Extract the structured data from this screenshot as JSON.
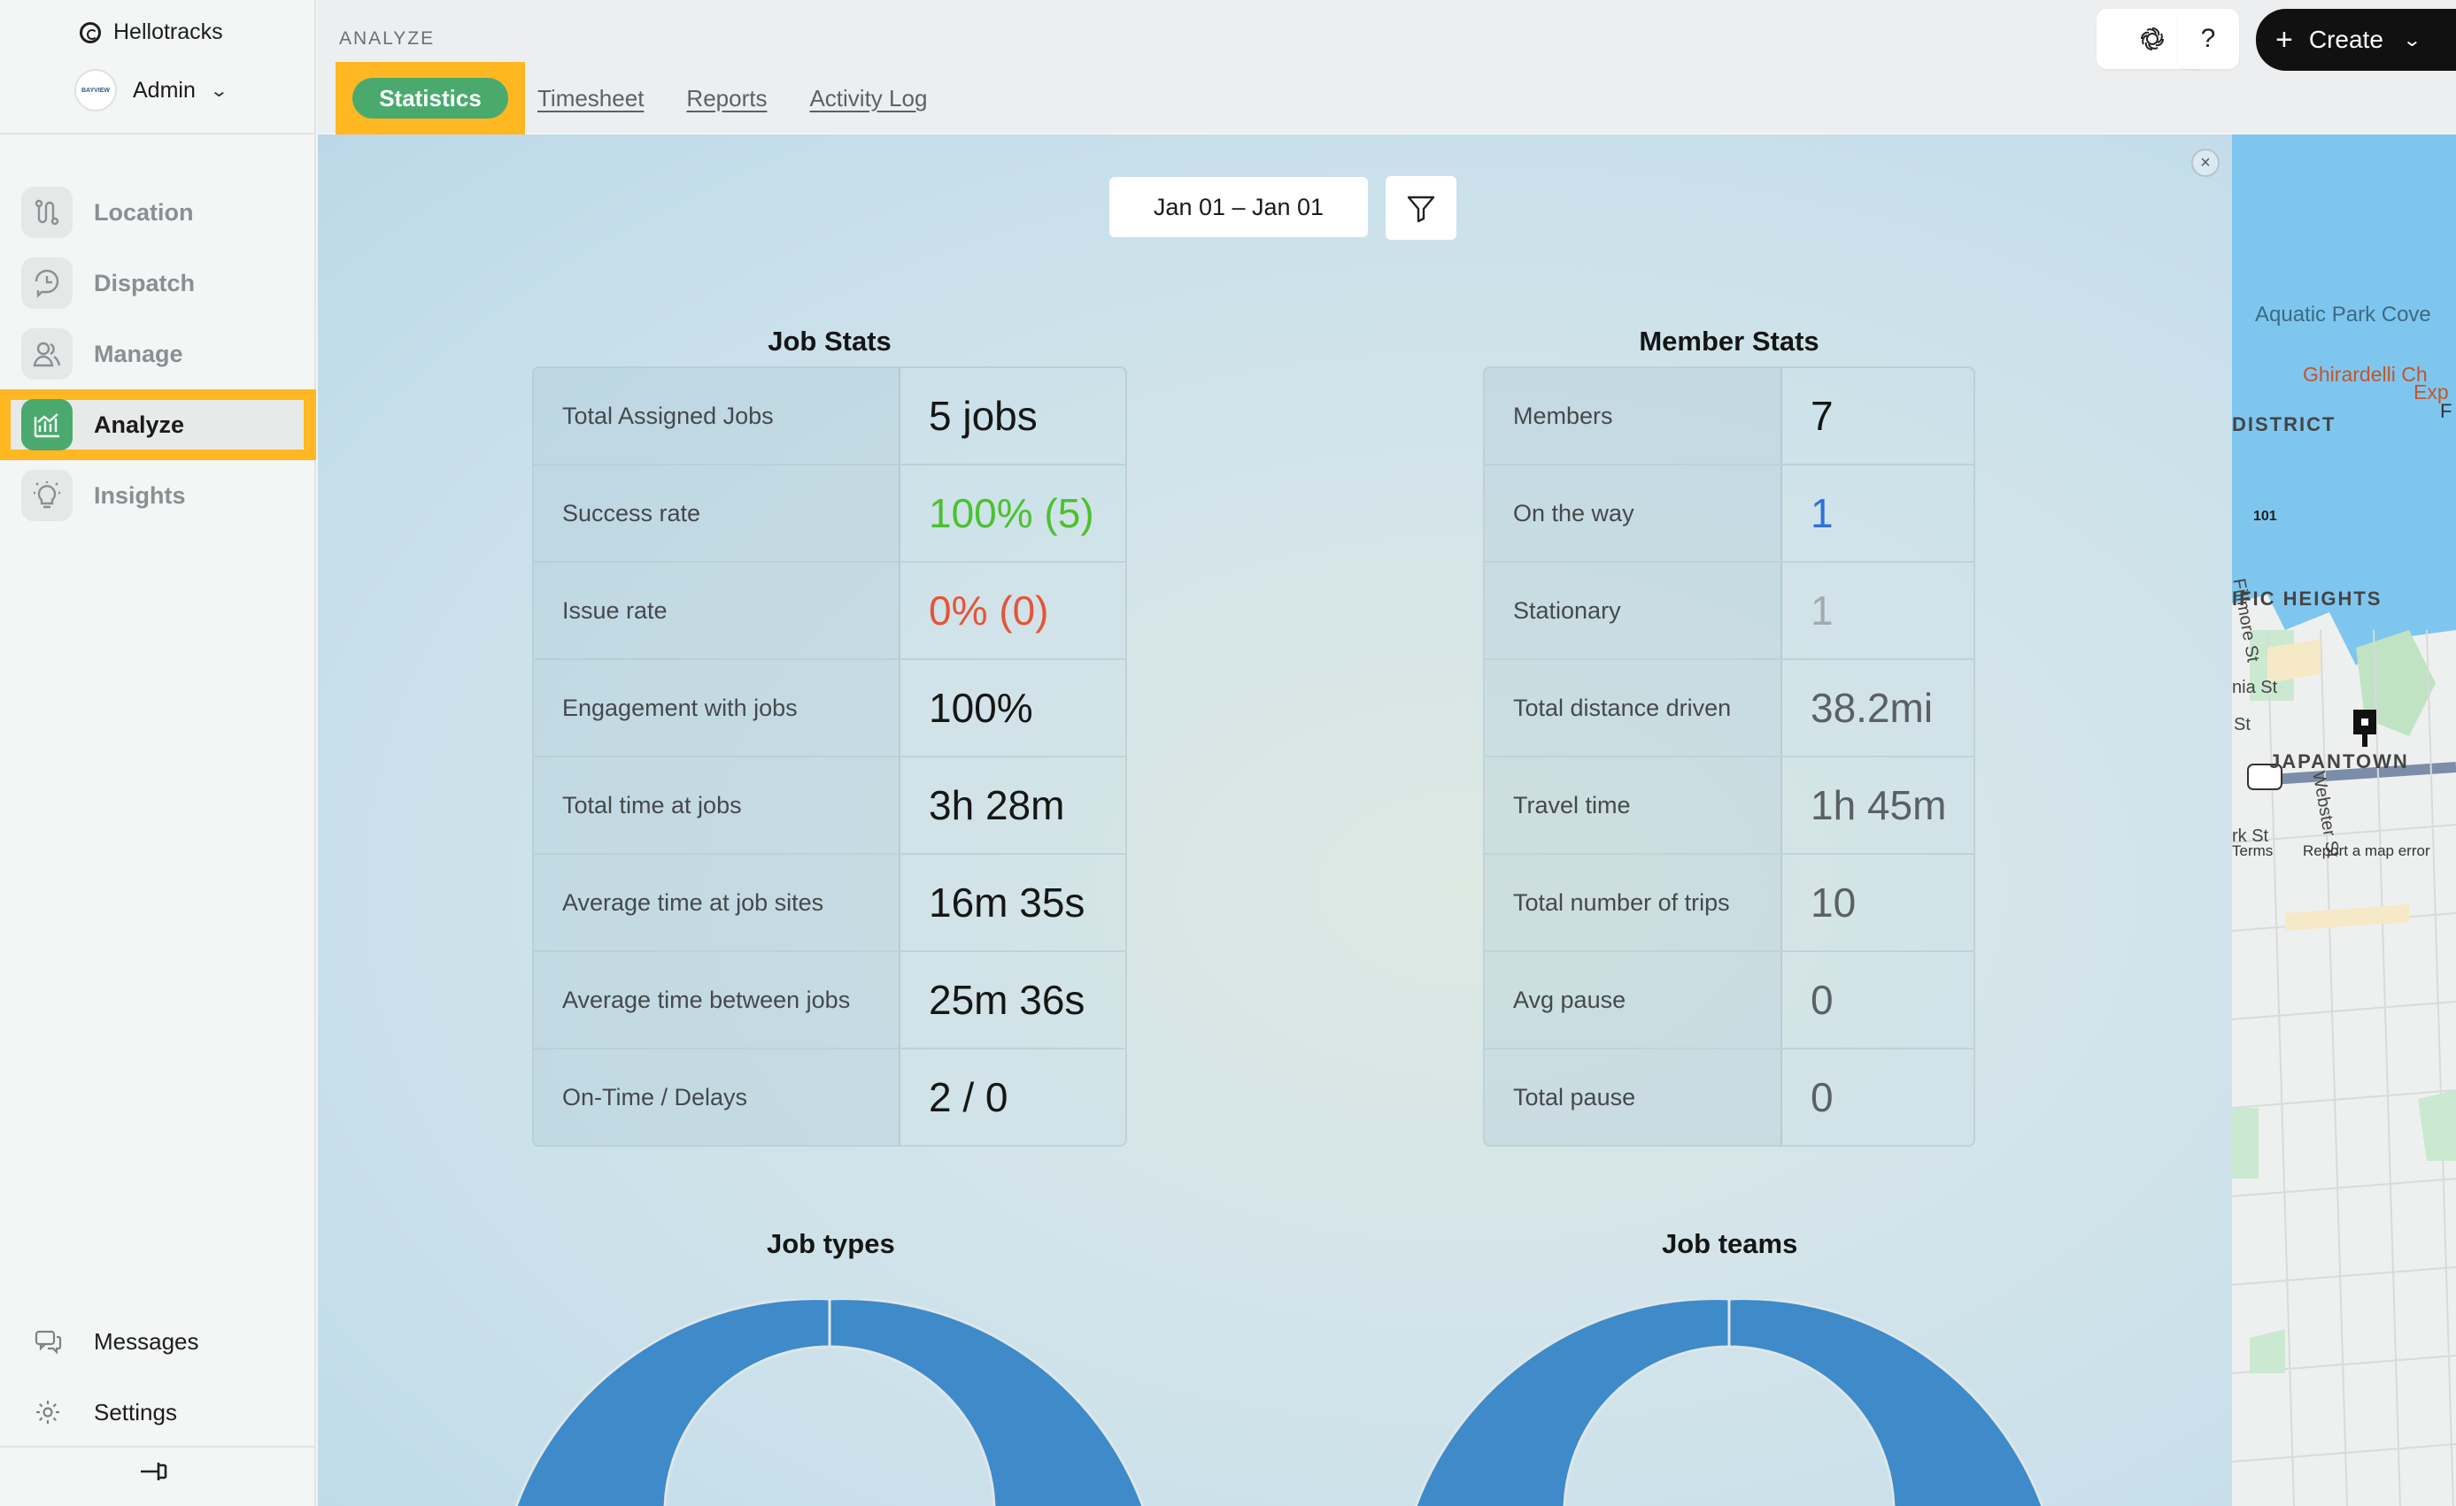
{
  "app": {
    "name": "Hellotracks",
    "account": "Admin"
  },
  "sidebar": {
    "items": [
      {
        "label": "Location",
        "icon": "location-route-icon"
      },
      {
        "label": "Dispatch",
        "icon": "dispatch-clock-icon"
      },
      {
        "label": "Manage",
        "icon": "manage-users-icon"
      },
      {
        "label": "Analyze",
        "icon": "analyze-chart-icon",
        "active": true
      },
      {
        "label": "Insights",
        "icon": "insights-bulb-icon"
      }
    ],
    "bottom": [
      {
        "label": "Messages",
        "icon": "chat-icon"
      },
      {
        "label": "Settings",
        "icon": "gear-icon"
      }
    ]
  },
  "header": {
    "section": "ANALYZE",
    "tabs": [
      {
        "label": "Statistics",
        "active": true
      },
      {
        "label": "Timesheet"
      },
      {
        "label": "Reports"
      },
      {
        "label": "Activity Log"
      }
    ],
    "help_label": "?",
    "create_label": "Create"
  },
  "filters": {
    "date_range": "Jan 01 – Jan 01"
  },
  "job_stats": {
    "title": "Job Stats",
    "rows": [
      {
        "label": "Total Assigned Jobs",
        "value": "5 jobs"
      },
      {
        "label": "Success rate",
        "value": "100% (5)"
      },
      {
        "label": "Issue rate",
        "value": "0% (0)"
      },
      {
        "label": "Engagement with jobs",
        "value": "100%"
      },
      {
        "label": "Total time at jobs",
        "value": "3h 28m"
      },
      {
        "label": "Average time at job sites",
        "value": "16m 35s"
      },
      {
        "label": "Average time between jobs",
        "value": "25m 36s"
      },
      {
        "label": "On-Time / Delays",
        "value": "2 / 0"
      }
    ]
  },
  "member_stats": {
    "title": "Member Stats",
    "rows": [
      {
        "label": "Members",
        "value": "7"
      },
      {
        "label": "On the way",
        "value": "1"
      },
      {
        "label": "Stationary",
        "value": "1"
      },
      {
        "label": "Total distance driven",
        "value": "38.2mi"
      },
      {
        "label": "Travel time",
        "value": "1h 45m"
      },
      {
        "label": "Total number of trips",
        "value": "10"
      },
      {
        "label": "Avg pause",
        "value": "0"
      },
      {
        "label": "Total pause",
        "value": "0"
      }
    ]
  },
  "charts": {
    "job_types_title": "Job types",
    "job_teams_title": "Job teams"
  },
  "colors": {
    "accent_green": "#4aaa6e",
    "highlight": "#ffb822",
    "success": "#4cc12e",
    "issue": "#e4553a",
    "on_the_way": "#2f72d6",
    "muted": "#9aa0a4",
    "donut": "#3f8ac8"
  },
  "map": {
    "labels": [
      "Aquatic Park Cove",
      "Ghirardelli Ch",
      "Exp",
      "F",
      "DISTRICT",
      "101",
      "Fillmore St",
      "IFIC HEIGHTS",
      "nia St",
      "St",
      "JAPANTOWN",
      "Webster St",
      "rk St",
      "Terms",
      "Report a map error"
    ]
  }
}
